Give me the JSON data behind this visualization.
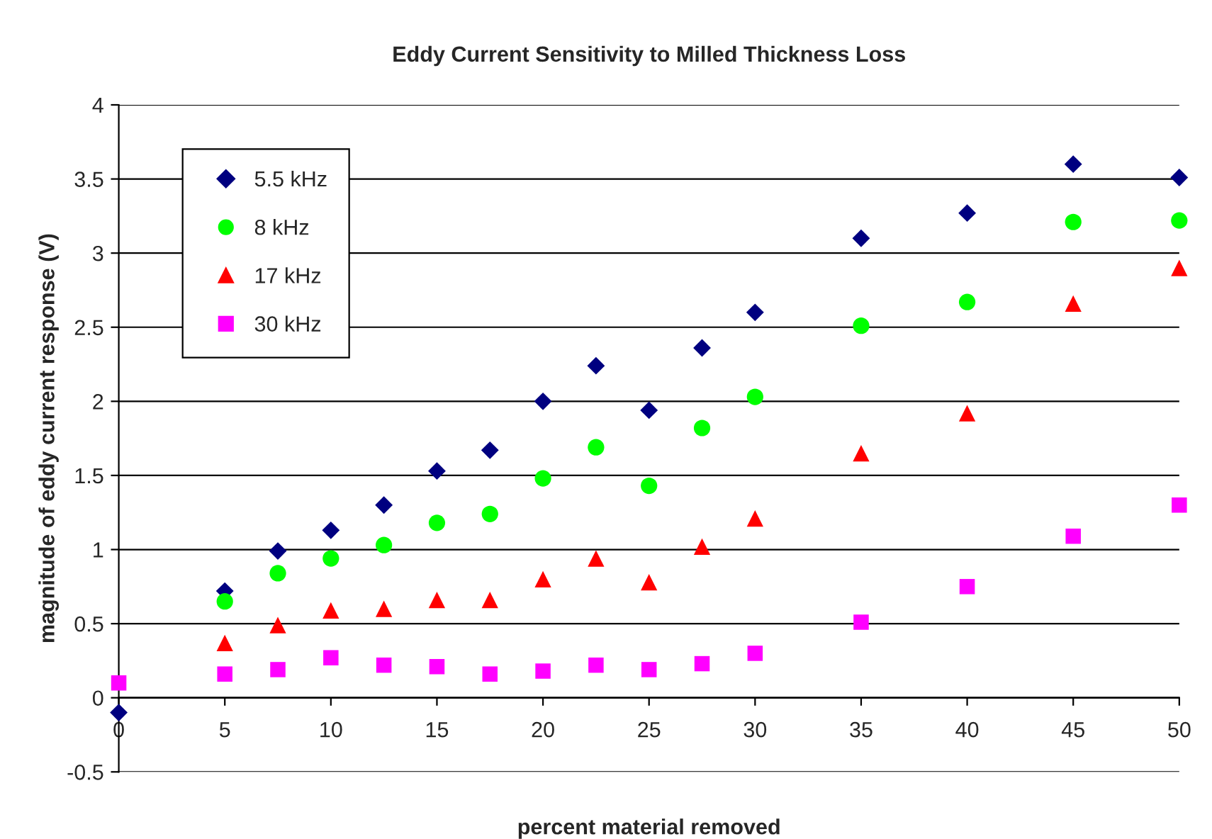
{
  "chart_data": {
    "type": "scatter",
    "title": "Eddy Current Sensitivity to Milled Thickness Loss",
    "xlabel": "percent material removed",
    "ylabel": "magnitude of eddy current response (V)",
    "x": [
      0,
      5,
      7.5,
      10,
      12.5,
      15,
      17.5,
      20,
      22.5,
      25,
      27.5,
      30,
      35,
      40,
      45,
      50
    ],
    "series": [
      {
        "name": "5.5 kHz",
        "color": "#000080",
        "marker": "diamond",
        "values": [
          -0.1,
          0.72,
          0.99,
          1.13,
          1.3,
          1.53,
          1.67,
          2.0,
          2.24,
          1.94,
          2.36,
          2.6,
          3.1,
          3.27,
          3.6,
          3.51
        ]
      },
      {
        "name": "8 kHz",
        "color": "#00ff00",
        "marker": "circle",
        "values": [
          null,
          0.65,
          0.84,
          0.94,
          1.03,
          1.18,
          1.24,
          1.48,
          1.69,
          1.43,
          1.82,
          2.03,
          2.51,
          2.67,
          3.21,
          3.22
        ]
      },
      {
        "name": "17 kHz",
        "color": "#ff0000",
        "marker": "triangle",
        "values": [
          null,
          0.37,
          0.49,
          0.59,
          0.6,
          0.66,
          0.66,
          0.8,
          0.94,
          0.78,
          1.02,
          1.21,
          1.65,
          1.92,
          2.66,
          2.9
        ]
      },
      {
        "name": "30 kHz",
        "color": "#ff00ff",
        "marker": "square",
        "values": [
          0.1,
          0.16,
          0.19,
          0.27,
          0.22,
          0.21,
          0.16,
          0.18,
          0.22,
          0.19,
          0.23,
          0.3,
          0.51,
          0.75,
          1.09,
          1.3
        ]
      }
    ],
    "xlim": [
      0,
      50
    ],
    "xticks": [
      0,
      5,
      10,
      15,
      20,
      25,
      30,
      35,
      40,
      45,
      50
    ],
    "ylim": [
      -0.5,
      4
    ],
    "yticks": [
      -0.5,
      0,
      0.5,
      1,
      1.5,
      2,
      2.5,
      3,
      3.5,
      4
    ],
    "grid": "y",
    "legend": "top left"
  }
}
